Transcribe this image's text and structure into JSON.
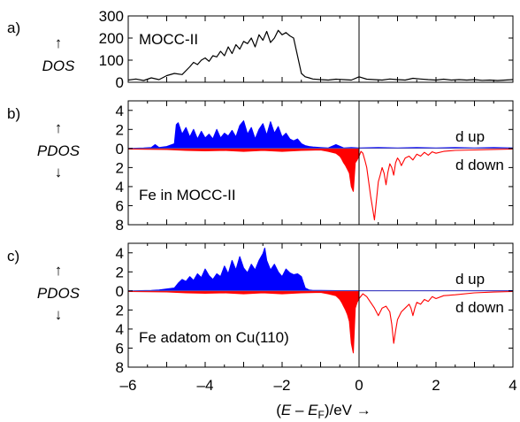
{
  "chart_data": [
    {
      "type": "line",
      "panel_label": "a)",
      "ylabel_arrow": "↑",
      "ylabel": "DOS",
      "annotation": "MOCC-II",
      "xlim": [
        -6,
        4
      ],
      "ylim": [
        0,
        300
      ],
      "yticks": [
        0,
        100,
        200,
        300
      ],
      "vline_x": 0,
      "colors": {
        "line": "#000000"
      },
      "series": [
        {
          "x": [
            -6.0,
            -5.8,
            -5.6,
            -5.4,
            -5.2,
            -5.0,
            -4.8,
            -4.6,
            -4.4,
            -4.3,
            -4.2,
            -4.1,
            -4.0,
            -3.9,
            -3.8,
            -3.7,
            -3.6,
            -3.5,
            -3.4,
            -3.3,
            -3.2,
            -3.1,
            -3.0,
            -2.9,
            -2.8,
            -2.7,
            -2.6,
            -2.5,
            -2.4,
            -2.3,
            -2.2,
            -2.1,
            -2.0,
            -1.9,
            -1.8,
            -1.7,
            -1.6,
            -1.5,
            -1.4,
            -1.3,
            -1.2,
            -1.0,
            -0.8,
            -0.6,
            -0.4,
            -0.2,
            0.0,
            0.2,
            0.4,
            0.6,
            0.8,
            1.0,
            1.2,
            1.4,
            1.6,
            1.8,
            2.0,
            2.2,
            2.4,
            2.6,
            2.8,
            3.0,
            3.2,
            3.4,
            3.6,
            3.8,
            4.0
          ],
          "y": [
            10,
            15,
            8,
            20,
            12,
            30,
            40,
            35,
            70,
            90,
            80,
            100,
            110,
            95,
            120,
            115,
            140,
            120,
            160,
            130,
            170,
            150,
            185,
            175,
            200,
            160,
            215,
            190,
            230,
            180,
            200,
            235,
            215,
            225,
            210,
            200,
            120,
            40,
            25,
            20,
            15,
            12,
            10,
            14,
            12,
            10,
            25,
            14,
            12,
            10,
            15,
            12,
            10,
            18,
            15,
            12,
            10,
            14,
            10,
            12,
            10,
            12,
            9,
            10,
            8,
            10,
            12
          ]
        }
      ]
    },
    {
      "type": "area",
      "panel_label": "b)",
      "ylabel_up_arrow": "↑",
      "ylabel": "PDOS",
      "ylabel_down_arrow": "↓",
      "annotation": "Fe in MOCC-II",
      "xlim": [
        -6,
        4
      ],
      "ylim": [
        -8,
        5
      ],
      "yticks": [
        -8,
        -6,
        -4,
        -2,
        0,
        2,
        4
      ],
      "yticklabels": [
        "8",
        "6",
        "4",
        "2",
        "0",
        "2",
        "4"
      ],
      "vline_x": 0,
      "colors": {
        "up": "#0000ff",
        "down": "#ff0000"
      },
      "series": [
        {
          "name": "d up",
          "x": [
            -6.0,
            -5.6,
            -5.4,
            -5.3,
            -5.2,
            -5.0,
            -4.8,
            -4.75,
            -4.7,
            -4.6,
            -4.5,
            -4.4,
            -4.3,
            -4.2,
            -4.1,
            -4.0,
            -3.9,
            -3.8,
            -3.7,
            -3.6,
            -3.5,
            -3.4,
            -3.3,
            -3.2,
            -3.1,
            -3.0,
            -2.9,
            -2.8,
            -2.7,
            -2.6,
            -2.5,
            -2.4,
            -2.3,
            -2.2,
            -2.1,
            -2.0,
            -1.9,
            -1.8,
            -1.7,
            -1.6,
            -1.5,
            -1.4,
            -1.3,
            -1.2,
            -1.0,
            -0.8,
            -0.6,
            -0.4,
            -0.2,
            0.0,
            0.5,
            1.0,
            1.5,
            2.0,
            2.5,
            3.0,
            3.5,
            4.0
          ],
          "y": [
            0.0,
            0.05,
            0.1,
            0.4,
            0.1,
            0.2,
            0.5,
            2.5,
            2.7,
            1.5,
            2.2,
            1.2,
            2.0,
            1.0,
            1.8,
            1.1,
            1.5,
            1.0,
            2.0,
            1.1,
            1.6,
            1.3,
            1.9,
            1.2,
            2.4,
            2.9,
            1.5,
            2.2,
            1.0,
            2.0,
            2.6,
            1.4,
            2.8,
            1.6,
            2.3,
            1.2,
            1.6,
            1.0,
            0.8,
            1.0,
            0.5,
            0.3,
            0.2,
            0.15,
            0.1,
            0.05,
            0.4,
            0.05,
            0.1,
            0.05,
            0.1,
            0.05,
            0.1,
            0.05,
            0.1,
            0.05,
            0.1,
            0.05
          ]
        },
        {
          "name": "d down",
          "x": [
            -6.0,
            -5.0,
            -4.5,
            -4.0,
            -3.5,
            -3.0,
            -2.5,
            -2.0,
            -1.5,
            -1.0,
            -0.8,
            -0.6,
            -0.5,
            -0.45,
            -0.4,
            -0.35,
            -0.3,
            -0.25,
            -0.2,
            -0.15,
            -0.1,
            -0.05,
            0.0,
            0.05,
            0.1,
            0.15,
            0.2,
            0.25,
            0.3,
            0.35,
            0.4,
            0.45,
            0.5,
            0.55,
            0.6,
            0.65,
            0.7,
            0.75,
            0.8,
            0.85,
            0.9,
            0.95,
            1.0,
            1.05,
            1.1,
            1.2,
            1.3,
            1.4,
            1.5,
            1.6,
            1.7,
            1.8,
            1.9,
            2.0,
            2.2,
            2.5,
            3.0,
            3.5,
            4.0
          ],
          "y": [
            -0.05,
            -0.1,
            -0.2,
            -0.25,
            -0.2,
            -0.3,
            -0.2,
            -0.3,
            -0.2,
            -0.15,
            -0.3,
            -0.5,
            -0.8,
            -1.1,
            -1.5,
            -1.8,
            -2.2,
            -2.6,
            -4.0,
            -4.5,
            -1.5,
            -1.2,
            -0.8,
            -0.3,
            -0.5,
            -1.2,
            -2.0,
            -3.5,
            -5.0,
            -6.2,
            -7.5,
            -5.5,
            -3.5,
            -2.8,
            -2.0,
            -2.6,
            -3.8,
            -2.5,
            -1.6,
            -2.0,
            -2.8,
            -1.5,
            -1.0,
            -1.3,
            -1.8,
            -1.0,
            -0.8,
            -1.2,
            -0.6,
            -0.8,
            -0.4,
            -0.7,
            -0.35,
            -0.5,
            -0.3,
            -0.2,
            -0.15,
            -0.1,
            -0.05
          ]
        }
      ]
    },
    {
      "type": "area",
      "panel_label": "c)",
      "ylabel_up_arrow": "↑",
      "ylabel": "PDOS",
      "ylabel_down_arrow": "↓",
      "annotation": "Fe adatom on Cu(110)",
      "xlim": [
        -6,
        4
      ],
      "ylim": [
        -8,
        5
      ],
      "yticks": [
        -8,
        -6,
        -4,
        -2,
        0,
        2,
        4
      ],
      "yticklabels": [
        "8",
        "6",
        "4",
        "2",
        "0",
        "2",
        "4"
      ],
      "xticks": [
        -6,
        -4,
        -2,
        0,
        2,
        4
      ],
      "xticklabels": [
        "–6",
        "–4",
        "–2",
        "0",
        "2",
        "4"
      ],
      "vline_x": 0,
      "colors": {
        "up": "#0000ff",
        "down": "#ff0000"
      },
      "series": [
        {
          "name": "d up",
          "x": [
            -6.0,
            -5.4,
            -5.2,
            -5.0,
            -4.8,
            -4.7,
            -4.6,
            -4.5,
            -4.4,
            -4.3,
            -4.2,
            -4.1,
            -4.0,
            -3.9,
            -3.8,
            -3.7,
            -3.6,
            -3.5,
            -3.4,
            -3.3,
            -3.2,
            -3.1,
            -3.0,
            -2.9,
            -2.8,
            -2.7,
            -2.6,
            -2.5,
            -2.45,
            -2.4,
            -2.3,
            -2.2,
            -2.1,
            -2.0,
            -1.9,
            -1.8,
            -1.7,
            -1.6,
            -1.5,
            -1.4,
            -1.3,
            -1.2,
            -1.0,
            -0.5,
            0.0,
            1.0,
            2.0,
            3.0,
            4.0
          ],
          "y": [
            0.0,
            0.05,
            0.1,
            0.2,
            0.3,
            0.8,
            1.2,
            1.0,
            1.5,
            1.1,
            1.8,
            1.4,
            2.3,
            1.6,
            1.2,
            1.8,
            1.5,
            2.6,
            1.8,
            3.2,
            2.2,
            3.6,
            2.4,
            1.9,
            2.8,
            2.2,
            3.2,
            3.9,
            4.5,
            3.2,
            2.2,
            2.8,
            2.0,
            1.5,
            2.3,
            1.9,
            1.7,
            1.8,
            1.5,
            0.3,
            0.1,
            0.05,
            0.05,
            0.02,
            0.02,
            0.02,
            0.02,
            0.02,
            0.02
          ]
        },
        {
          "name": "d down",
          "x": [
            -6.0,
            -5.0,
            -4.5,
            -4.0,
            -3.5,
            -3.0,
            -2.5,
            -2.0,
            -1.5,
            -1.0,
            -0.8,
            -0.6,
            -0.5,
            -0.45,
            -0.4,
            -0.35,
            -0.3,
            -0.25,
            -0.2,
            -0.15,
            -0.1,
            -0.05,
            0.0,
            0.1,
            0.2,
            0.3,
            0.4,
            0.5,
            0.6,
            0.7,
            0.8,
            0.85,
            0.9,
            0.95,
            1.0,
            1.05,
            1.1,
            1.2,
            1.3,
            1.35,
            1.4,
            1.45,
            1.5,
            1.6,
            1.7,
            1.8,
            1.9,
            2.0,
            2.2,
            2.5,
            3.0,
            3.5,
            4.0
          ],
          "y": [
            -0.05,
            -0.1,
            -0.2,
            -0.25,
            -0.2,
            -0.3,
            -0.2,
            -0.3,
            -0.2,
            -0.15,
            -0.3,
            -0.5,
            -0.9,
            -1.2,
            -1.6,
            -2.0,
            -2.5,
            -3.2,
            -5.5,
            -6.5,
            -1.8,
            -1.2,
            -0.8,
            -0.3,
            -0.6,
            -1.2,
            -1.8,
            -2.6,
            -1.8,
            -1.6,
            -2.2,
            -3.5,
            -5.5,
            -4.2,
            -3.0,
            -2.6,
            -2.2,
            -1.8,
            -1.4,
            -1.8,
            -2.6,
            -1.8,
            -1.2,
            -1.4,
            -0.9,
            -1.1,
            -0.6,
            -0.8,
            -0.5,
            -0.4,
            -0.2,
            -0.12,
            -0.05
          ]
        }
      ]
    }
  ],
  "figure": {
    "xlabel_parts": [
      "(",
      "E",
      " – ",
      "E",
      "F",
      ")/eV →"
    ]
  }
}
